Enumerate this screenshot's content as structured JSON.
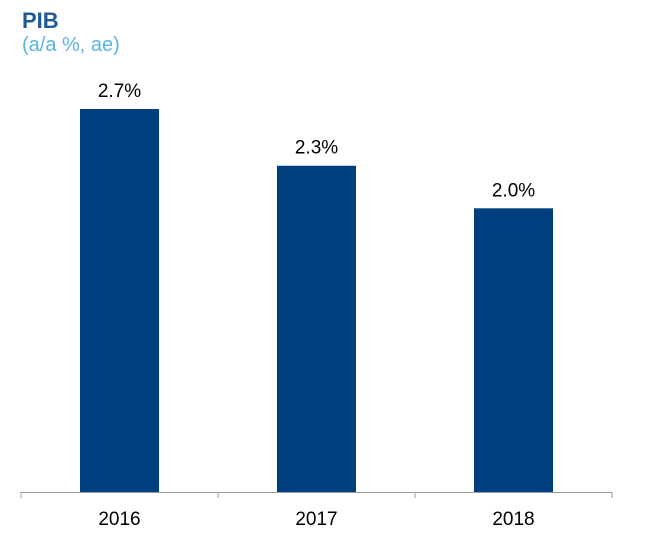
{
  "title": "PIB",
  "subtitle": "(a/a %, ae)",
  "colors": {
    "bar": "#003f7d",
    "axis": "#9a9a9a",
    "title": "#1f5a96",
    "subtitle": "#5bb4e0"
  },
  "chart_data": {
    "type": "bar",
    "title": "PIB",
    "subtitle": "(a/a %, ae)",
    "categories": [
      "2016",
      "2017",
      "2018"
    ],
    "values": [
      2.7,
      2.3,
      2.0
    ],
    "data_labels": [
      "2.7%",
      "2.3%",
      "2.0%"
    ],
    "xlabel": "",
    "ylabel": "",
    "ylim": [
      0,
      2.7
    ],
    "grid": false,
    "legend": "none"
  }
}
